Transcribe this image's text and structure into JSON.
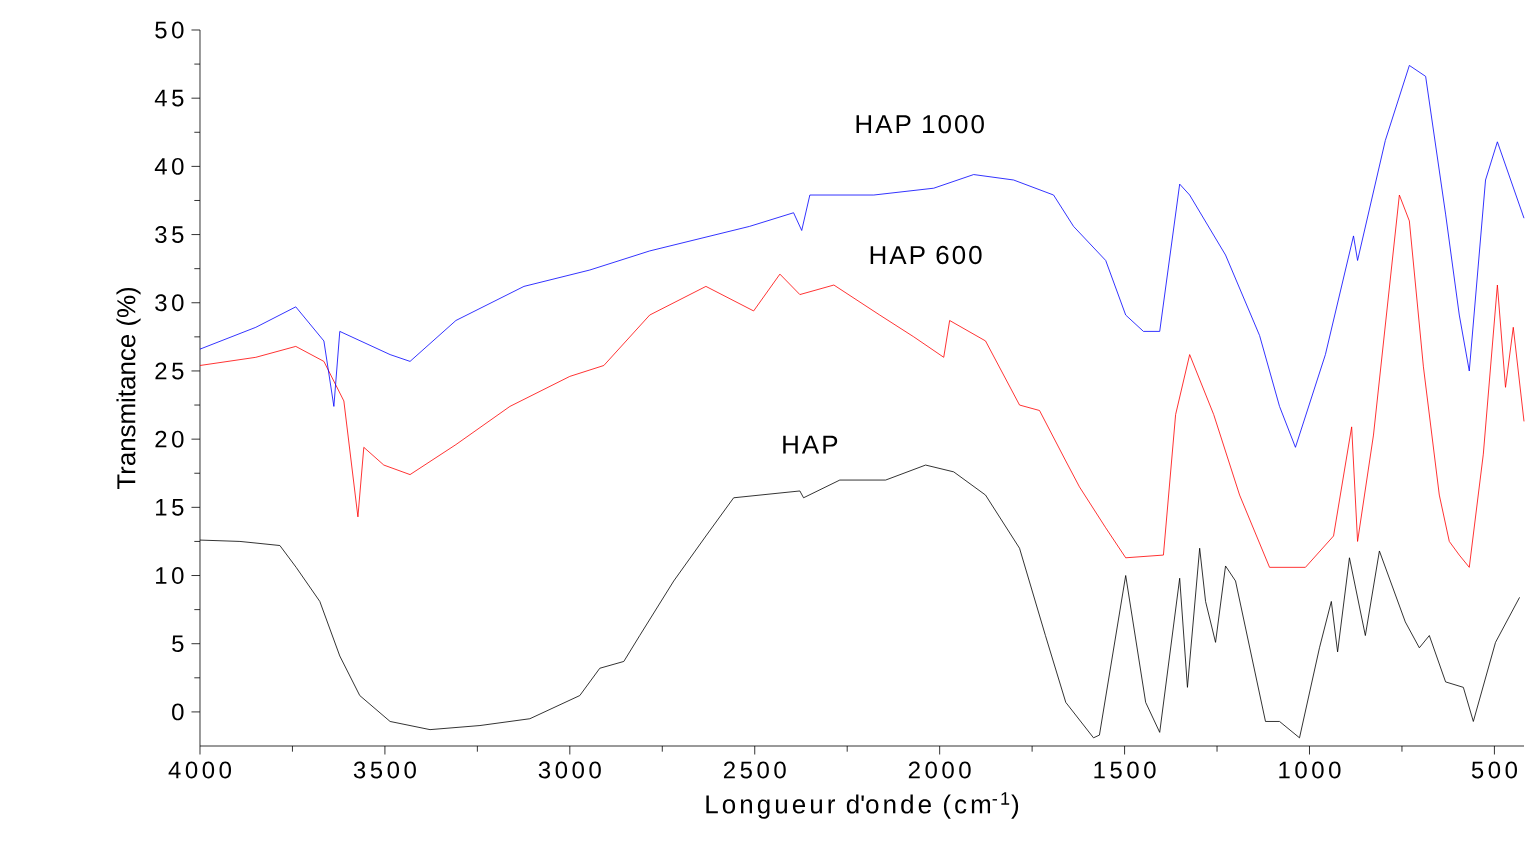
{
  "chart_data": {
    "type": "line",
    "xlabel": "Longueur d'onde (cm$^{-1}$)",
    "ylabel": "Transmitance (%)",
    "xlim": [
      4000,
      420
    ],
    "ylim": [
      -2.5,
      50
    ],
    "xticks": [
      4000,
      3500,
      3000,
      2500,
      2000,
      1500,
      1000,
      500
    ],
    "yticks": [
      0,
      5,
      10,
      15,
      20,
      25,
      30,
      35,
      40,
      45,
      50
    ],
    "grid": false,
    "marker": "none",
    "line_style": "solid",
    "series": [
      {
        "name": "HAP",
        "color": "#000000",
        "x": [
          4000,
          3892,
          3784,
          3740,
          3676,
          3622,
          3568,
          3486,
          3378,
          3243,
          3108,
          2973,
          2919,
          2854,
          2811,
          2719,
          2632,
          2557,
          2378,
          2368,
          2270,
          2146,
          2038,
          1962,
          1876,
          1784,
          1714,
          1659,
          1584,
          1568,
          1497,
          1443,
          1405,
          1351,
          1330,
          1297,
          1281,
          1254,
          1227,
          1200,
          1119,
          1081,
          1027,
          973,
          941,
          924,
          892,
          849,
          811,
          741,
          703,
          676,
          632,
          584,
          557,
          497,
          432
        ],
        "values": [
          12.6,
          12.5,
          12.2,
          10.6,
          8.1,
          4.1,
          1.2,
          -0.7,
          -1.3,
          -1.0,
          -0.5,
          1.2,
          3.2,
          3.7,
          5.6,
          9.6,
          12.9,
          15.7,
          16.2,
          15.7,
          17.0,
          17.0,
          18.1,
          17.6,
          15.9,
          12.0,
          5.6,
          0.7,
          -1.9,
          -1.7,
          10.0,
          0.7,
          -1.5,
          9.8,
          1.8,
          12.0,
          8.1,
          5.1,
          10.7,
          9.6,
          -0.7,
          -0.7,
          -1.9,
          4.7,
          8.1,
          4.4,
          11.3,
          5.6,
          11.8,
          6.6,
          4.7,
          5.6,
          2.2,
          1.8,
          -0.7,
          5.1,
          8.4
        ]
      },
      {
        "name": "HAP 600",
        "color": "#ff0000",
        "x": [
          4000,
          3849,
          3741,
          3665,
          3611,
          3573,
          3557,
          3503,
          3432,
          3308,
          3162,
          3000,
          2908,
          2784,
          2632,
          2503,
          2432,
          2378,
          2286,
          2162,
          2070,
          1989,
          1973,
          1876,
          1784,
          1730,
          1659,
          1622,
          1551,
          1497,
          1395,
          1362,
          1324,
          1259,
          1189,
          1108,
          1011,
          935,
          886,
          870,
          827,
          757,
          730,
          692,
          649,
          622,
          595,
          568,
          530,
          492,
          470,
          449,
          420
        ],
        "values": [
          25.4,
          26.0,
          26.8,
          25.7,
          22.8,
          14.3,
          19.4,
          18.1,
          17.4,
          19.6,
          22.4,
          24.6,
          25.4,
          29.1,
          31.2,
          29.4,
          32.1,
          30.6,
          31.3,
          29.1,
          27.5,
          26.0,
          28.7,
          27.2,
          22.5,
          22.1,
          18.4,
          16.5,
          13.5,
          11.3,
          11.5,
          21.8,
          26.2,
          21.8,
          15.9,
          10.6,
          10.6,
          12.9,
          20.9,
          12.5,
          20.3,
          37.9,
          36.0,
          25.3,
          15.9,
          12.5,
          11.5,
          10.6,
          18.9,
          31.3,
          23.8,
          28.2,
          21.3
        ]
      },
      {
        "name": "HAP 1000",
        "color": "#0000ff",
        "x": [
          4000,
          3849,
          3741,
          3665,
          3638,
          3622,
          3486,
          3432,
          3308,
          3124,
          2946,
          2784,
          2514,
          2395,
          2373,
          2351,
          2178,
          2016,
          1908,
          1800,
          1692,
          1638,
          1551,
          1497,
          1449,
          1405,
          1351,
          1324,
          1227,
          1135,
          1081,
          1038,
          957,
          881,
          870,
          795,
          730,
          686,
          632,
          595,
          568,
          524,
          492,
          420
        ],
        "values": [
          26.6,
          28.2,
          29.7,
          27.2,
          22.4,
          27.9,
          26.2,
          25.7,
          28.7,
          31.2,
          32.4,
          33.8,
          35.6,
          36.6,
          35.3,
          37.9,
          37.9,
          38.4,
          39.4,
          39.0,
          37.9,
          35.6,
          33.1,
          29.1,
          27.9,
          27.9,
          38.7,
          37.9,
          33.5,
          27.6,
          22.4,
          19.4,
          26.2,
          34.9,
          33.1,
          41.9,
          47.4,
          46.6,
          36.5,
          29.1,
          25.0,
          39.0,
          41.8,
          36.2
        ]
      }
    ]
  }
}
